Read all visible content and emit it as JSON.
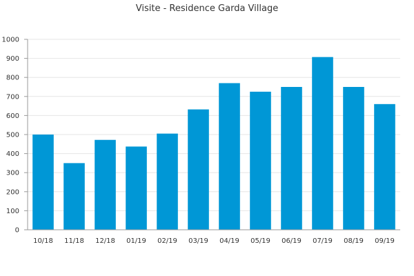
{
  "chart_data": {
    "type": "bar",
    "title": "Visite - Residence Garda Village",
    "xlabel": "",
    "ylabel": "",
    "categories": [
      "10/18",
      "11/18",
      "12/18",
      "01/19",
      "02/19",
      "03/19",
      "04/19",
      "05/19",
      "06/19",
      "07/19",
      "08/19",
      "09/19"
    ],
    "values": [
      500,
      350,
      472,
      437,
      505,
      632,
      770,
      725,
      750,
      907,
      750,
      660
    ],
    "ylim": [
      0,
      1000
    ],
    "yticks": [
      0,
      100,
      200,
      300,
      400,
      500,
      600,
      700,
      800,
      900,
      1000
    ],
    "grid": true,
    "bar_color": "#0097d6"
  }
}
